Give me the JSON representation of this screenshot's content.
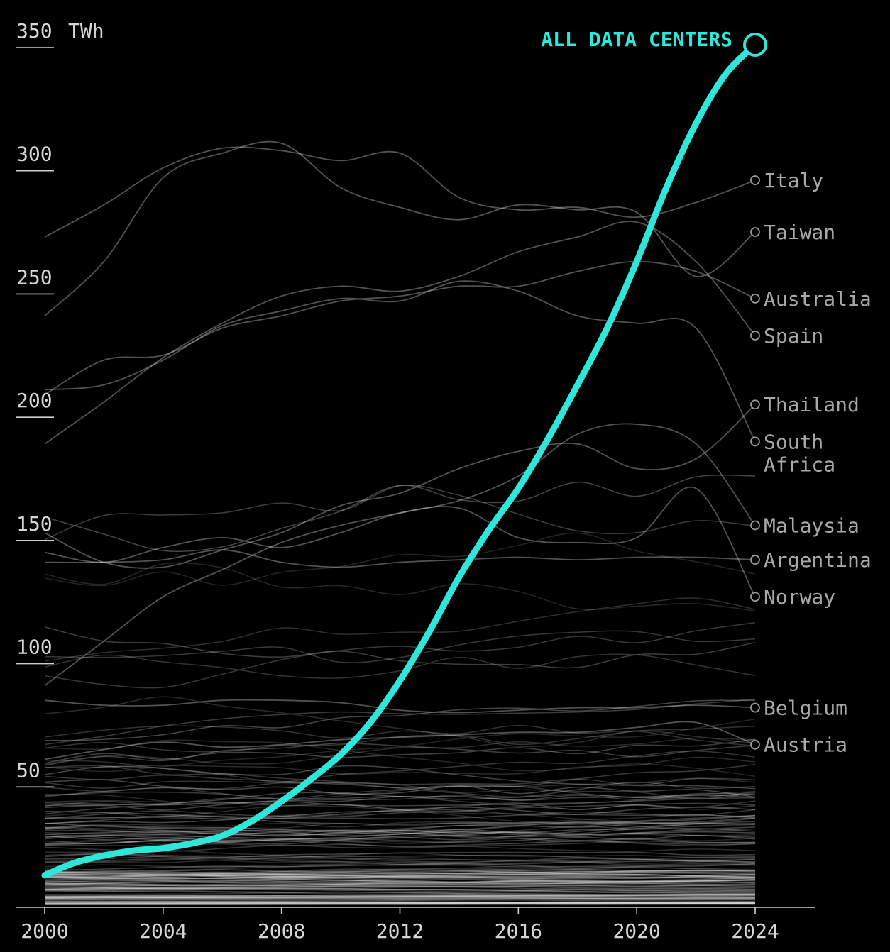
{
  "colors": {
    "background": "#000000",
    "highlight": "#2ee6d9",
    "country_line": "#ffffff",
    "axis": "#cfcfcf"
  },
  "chart_data": {
    "type": "line",
    "y_unit": "TWh",
    "xlim": [
      2000,
      2024
    ],
    "ylim": [
      0,
      350
    ],
    "x_ticks": [
      "2000",
      "2004",
      "2008",
      "2012",
      "2016",
      "2020",
      "2024"
    ],
    "y_ticks": [
      "50",
      "100",
      "150",
      "200",
      "250",
      "300",
      "350"
    ],
    "grid": false,
    "highlight_series": {
      "name": "ALL DATA CENTERS",
      "x": [
        2000,
        2001,
        2002,
        2003,
        2004,
        2005,
        2006,
        2007,
        2008,
        2009,
        2010,
        2011,
        2012,
        2013,
        2014,
        2015,
        2016,
        2017,
        2018,
        2019,
        2020,
        2021,
        2022,
        2023,
        2024
      ],
      "values": [
        13,
        18,
        21,
        23,
        24,
        26,
        29,
        35,
        43,
        52,
        62,
        75,
        92,
        112,
        134,
        153,
        170,
        190,
        212,
        235,
        262,
        292,
        318,
        338,
        350
      ]
    },
    "labeled_series": [
      {
        "name": "Italy",
        "x": [
          2000,
          2002,
          2004,
          2006,
          2008,
          2010,
          2012,
          2014,
          2016,
          2018,
          2020,
          2022,
          2024
        ],
        "values": [
          272,
          285,
          300,
          308,
          307,
          303,
          306,
          288,
          283,
          284,
          280,
          286,
          295
        ]
      },
      {
        "name": "Taiwan",
        "x": [
          2000,
          2002,
          2004,
          2006,
          2008,
          2010,
          2012,
          2014,
          2016,
          2018,
          2020,
          2022,
          2024
        ],
        "values": [
          240,
          262,
          296,
          306,
          310,
          292,
          284,
          279,
          285,
          283,
          282,
          256,
          274
        ]
      },
      {
        "name": "Australia",
        "x": [
          2000,
          2002,
          2004,
          2006,
          2008,
          2010,
          2012,
          2014,
          2016,
          2018,
          2020,
          2022,
          2024
        ],
        "values": [
          208,
          222,
          224,
          235,
          240,
          246,
          248,
          252,
          252,
          258,
          262,
          258,
          247
        ]
      },
      {
        "name": "Spain",
        "x": [
          2000,
          2002,
          2004,
          2006,
          2008,
          2010,
          2012,
          2014,
          2016,
          2018,
          2020,
          2022,
          2024
        ],
        "values": [
          188,
          205,
          223,
          237,
          248,
          252,
          250,
          256,
          266,
          272,
          278,
          262,
          232
        ]
      },
      {
        "name": "Thailand",
        "x": [
          2000,
          2002,
          2004,
          2006,
          2008,
          2010,
          2012,
          2014,
          2016,
          2018,
          2020,
          2022,
          2024
        ],
        "values": [
          152,
          140,
          138,
          145,
          152,
          163,
          168,
          178,
          185,
          188,
          178,
          182,
          204
        ]
      },
      {
        "name": "South Africa",
        "x": [
          2000,
          2002,
          2004,
          2006,
          2008,
          2010,
          2012,
          2014,
          2016,
          2018,
          2020,
          2022,
          2024
        ],
        "values": [
          210,
          212,
          222,
          236,
          242,
          247,
          246,
          254,
          250,
          240,
          237,
          235,
          189
        ]
      },
      {
        "name": "Malaysia",
        "x": [
          2000,
          2002,
          2004,
          2006,
          2008,
          2010,
          2012,
          2014,
          2016,
          2018,
          2020,
          2022,
          2024
        ],
        "values": [
          90,
          108,
          126,
          137,
          148,
          155,
          160,
          165,
          175,
          192,
          196,
          188,
          155
        ]
      },
      {
        "name": "Argentina",
        "x": [
          2000,
          2002,
          2004,
          2006,
          2008,
          2010,
          2012,
          2014,
          2016,
          2018,
          2020,
          2022,
          2024
        ],
        "values": [
          140,
          140,
          141,
          145,
          140,
          138,
          140,
          141,
          142,
          141,
          142,
          142,
          141
        ]
      },
      {
        "name": "Norway",
        "x": [
          2000,
          2002,
          2004,
          2006,
          2008,
          2010,
          2012,
          2014,
          2016,
          2018,
          2020,
          2022,
          2024
        ],
        "values": [
          144,
          140,
          146,
          150,
          146,
          152,
          160,
          162,
          150,
          148,
          150,
          170,
          126
        ]
      },
      {
        "name": "Belgium",
        "x": [
          2000,
          2002,
          2004,
          2006,
          2008,
          2010,
          2012,
          2014,
          2016,
          2018,
          2020,
          2022,
          2024
        ],
        "values": [
          84,
          82,
          82,
          84,
          84,
          83,
          80,
          79,
          80,
          81,
          81,
          82,
          81
        ]
      },
      {
        "name": "Austria",
        "x": [
          2000,
          2002,
          2004,
          2006,
          2008,
          2010,
          2012,
          2014,
          2016,
          2018,
          2020,
          2022,
          2024
        ],
        "values": [
          60,
          64,
          67,
          65,
          66,
          68,
          69,
          70,
          71,
          71,
          73,
          75,
          66
        ]
      }
    ],
    "background_series_count": 160
  }
}
